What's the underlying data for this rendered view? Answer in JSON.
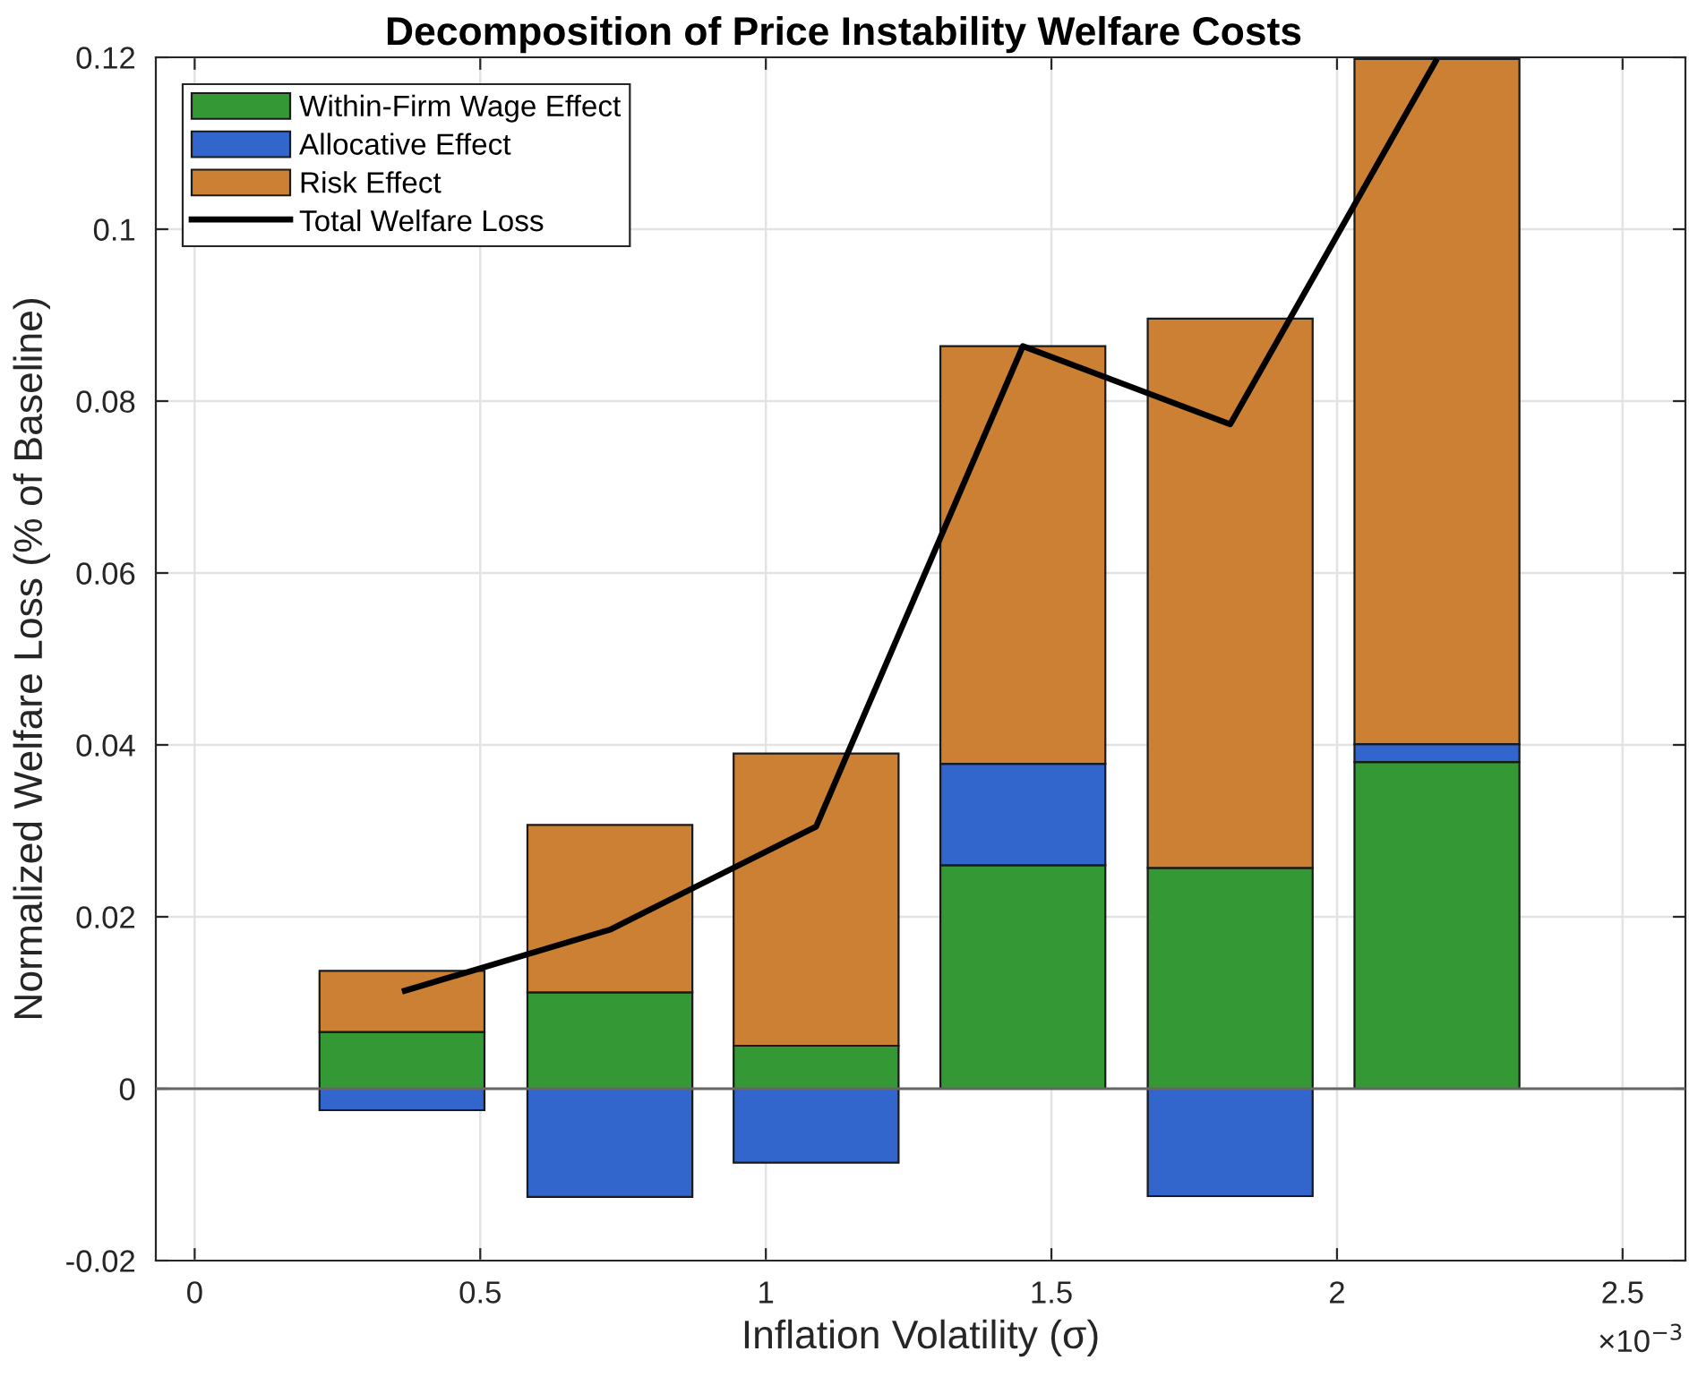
{
  "chart_data": {
    "type": "bar",
    "stacked": true,
    "title": "Decomposition of Price Instability Welfare Costs",
    "xlabel": "Inflation Volatility (σ)",
    "ylabel": "Normalized Welfare Loss (% of Baseline)",
    "x": [
      0.363,
      0.727,
      1.088,
      1.45,
      1.813,
      2.175
    ],
    "series": [
      {
        "name": "Within-Firm Wage Effect",
        "color": "#349934",
        "values": [
          0.0066,
          0.0112,
          0.005,
          0.026,
          0.0257,
          0.038
        ]
      },
      {
        "name": "Allocative Effect",
        "color": "#3366cc",
        "values": [
          -0.0025,
          -0.0126,
          -0.0086,
          0.0118,
          -0.0125,
          0.0021
        ]
      },
      {
        "name": "Risk Effect",
        "color": "#cc8033",
        "values": [
          0.0071,
          0.0195,
          0.034,
          0.0486,
          0.0639,
          0.0797
        ]
      },
      {
        "name": "Total Welfare Loss",
        "type": "line",
        "color": "#000000",
        "values": [
          0.0113,
          0.0185,
          0.0305,
          0.0864,
          0.0773,
          0.1198
        ]
      }
    ],
    "xlim": [
      -0.068,
      2.61
    ],
    "xticks": [
      0,
      0.5,
      1,
      1.5,
      2,
      2.5
    ],
    "ylim": [
      -0.02,
      0.12
    ],
    "yticks": [
      -0.02,
      0,
      0.02,
      0.04,
      0.06,
      0.08,
      0.1,
      0.12
    ],
    "grid": true,
    "legend": "top left",
    "ref_lines": [
      {
        "axis": "y",
        "value": 0,
        "color": "#666666"
      }
    ],
    "annotations": [
      "×10$^{−3}$"
    ]
  }
}
